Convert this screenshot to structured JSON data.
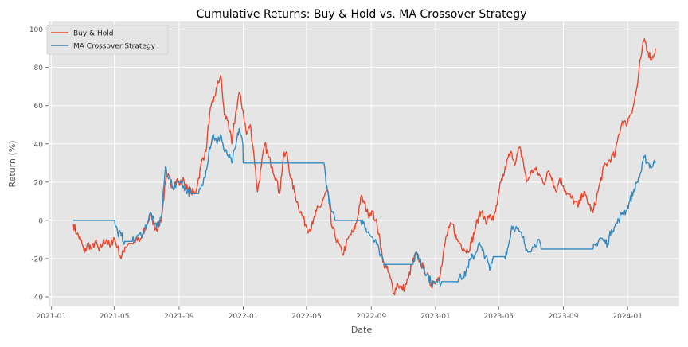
{
  "chart_data": {
    "type": "line",
    "title": "Cumulative Returns: Buy & Hold vs. MA Crossover Strategy",
    "xlabel": "Date",
    "ylabel": "Return (%)",
    "xlim": [
      "2020-12-27",
      "2024-04-08"
    ],
    "ylim": [
      -45,
      104
    ],
    "grid": true,
    "legend_position": "top-left",
    "x_ticks": [
      "2021-01",
      "2021-05",
      "2021-09",
      "2022-01",
      "2022-05",
      "2022-09",
      "2023-01",
      "2023-05",
      "2023-09",
      "2024-01"
    ],
    "y_ticks": [
      -40,
      -20,
      0,
      20,
      40,
      60,
      80,
      100
    ],
    "series": [
      {
        "name": "Buy & Hold",
        "color": "#E24A33",
        "points": [
          [
            "2021-02-12",
            -2
          ],
          [
            "2021-02-19",
            -7
          ],
          [
            "2021-02-26",
            -10
          ],
          [
            "2021-03-05",
            -17
          ],
          [
            "2021-03-12",
            -12
          ],
          [
            "2021-03-19",
            -15
          ],
          [
            "2021-03-26",
            -11
          ],
          [
            "2021-04-02",
            -16
          ],
          [
            "2021-04-09",
            -12
          ],
          [
            "2021-04-16",
            -10
          ],
          [
            "2021-04-23",
            -14
          ],
          [
            "2021-04-30",
            -9
          ],
          [
            "2021-05-07",
            -14
          ],
          [
            "2021-05-14",
            -20
          ],
          [
            "2021-05-21",
            -14
          ],
          [
            "2021-05-28",
            -12
          ],
          [
            "2021-06-04",
            -12
          ],
          [
            "2021-06-11",
            -10
          ],
          [
            "2021-06-18",
            -11
          ],
          [
            "2021-06-25",
            -7
          ],
          [
            "2021-07-02",
            -2
          ],
          [
            "2021-07-09",
            3
          ],
          [
            "2021-07-16",
            -3
          ],
          [
            "2021-07-23",
            -4
          ],
          [
            "2021-07-30",
            2
          ],
          [
            "2021-08-06",
            20
          ],
          [
            "2021-08-13",
            23
          ],
          [
            "2021-08-20",
            17
          ],
          [
            "2021-08-27",
            21
          ],
          [
            "2021-09-03",
            19
          ],
          [
            "2021-09-10",
            21
          ],
          [
            "2021-09-17",
            16
          ],
          [
            "2021-09-24",
            15
          ],
          [
            "2021-10-01",
            14
          ],
          [
            "2021-10-08",
            22
          ],
          [
            "2021-10-15",
            32
          ],
          [
            "2021-10-22",
            36
          ],
          [
            "2021-10-29",
            56
          ],
          [
            "2021-11-05",
            62
          ],
          [
            "2021-11-12",
            70
          ],
          [
            "2021-11-19",
            76
          ],
          [
            "2021-11-26",
            55
          ],
          [
            "2021-12-03",
            52
          ],
          [
            "2021-12-10",
            40
          ],
          [
            "2021-12-17",
            55
          ],
          [
            "2021-12-24",
            67
          ],
          [
            "2021-12-31",
            58
          ],
          [
            "2022-01-07",
            45
          ],
          [
            "2022-01-14",
            50
          ],
          [
            "2022-01-21",
            35
          ],
          [
            "2022-01-28",
            15
          ],
          [
            "2022-02-04",
            28
          ],
          [
            "2022-02-11",
            40
          ],
          [
            "2022-02-18",
            33
          ],
          [
            "2022-02-25",
            28
          ],
          [
            "2022-03-04",
            22
          ],
          [
            "2022-03-11",
            14
          ],
          [
            "2022-03-18",
            33
          ],
          [
            "2022-03-25",
            35
          ],
          [
            "2022-04-01",
            22
          ],
          [
            "2022-04-08",
            15
          ],
          [
            "2022-04-15",
            8
          ],
          [
            "2022-04-22",
            3
          ],
          [
            "2022-04-29",
            -2
          ],
          [
            "2022-05-06",
            -5
          ],
          [
            "2022-05-13",
            -2
          ],
          [
            "2022-05-20",
            5
          ],
          [
            "2022-05-27",
            7
          ],
          [
            "2022-06-03",
            12
          ],
          [
            "2022-06-10",
            16
          ],
          [
            "2022-06-17",
            -2
          ],
          [
            "2022-06-24",
            -8
          ],
          [
            "2022-07-01",
            -12
          ],
          [
            "2022-07-08",
            -18
          ],
          [
            "2022-07-15",
            -13
          ],
          [
            "2022-07-22",
            -8
          ],
          [
            "2022-07-29",
            -6
          ],
          [
            "2022-08-05",
            0
          ],
          [
            "2022-08-12",
            12
          ],
          [
            "2022-08-19",
            9
          ],
          [
            "2022-08-26",
            3
          ],
          [
            "2022-09-02",
            5
          ],
          [
            "2022-09-09",
            0
          ],
          [
            "2022-09-16",
            -7
          ],
          [
            "2022-09-23",
            -22
          ],
          [
            "2022-09-30",
            -25
          ],
          [
            "2022-10-07",
            -30
          ],
          [
            "2022-10-14",
            -38
          ],
          [
            "2022-10-21",
            -33
          ],
          [
            "2022-10-28",
            -36
          ],
          [
            "2022-11-04",
            -35
          ],
          [
            "2022-11-11",
            -30
          ],
          [
            "2022-11-18",
            -22
          ],
          [
            "2022-11-25",
            -18
          ],
          [
            "2022-12-02",
            -21
          ],
          [
            "2022-12-09",
            -25
          ],
          [
            "2022-12-16",
            -28
          ],
          [
            "2022-12-23",
            -34
          ],
          [
            "2022-12-30",
            -32
          ],
          [
            "2023-01-06",
            -30
          ],
          [
            "2023-01-13",
            -24
          ],
          [
            "2023-01-20",
            -10
          ],
          [
            "2023-01-27",
            -4
          ],
          [
            "2023-02-03",
            -2
          ],
          [
            "2023-02-10",
            -10
          ],
          [
            "2023-02-17",
            -12
          ],
          [
            "2023-02-24",
            -15
          ],
          [
            "2023-03-03",
            -16
          ],
          [
            "2023-03-10",
            -12
          ],
          [
            "2023-03-17",
            -5
          ],
          [
            "2023-03-24",
            2
          ],
          [
            "2023-03-31",
            5
          ],
          [
            "2023-04-07",
            -2
          ],
          [
            "2023-04-14",
            3
          ],
          [
            "2023-04-21",
            0
          ],
          [
            "2023-04-28",
            8
          ],
          [
            "2023-05-05",
            20
          ],
          [
            "2023-05-12",
            25
          ],
          [
            "2023-05-19",
            33
          ],
          [
            "2023-05-26",
            35
          ],
          [
            "2023-06-02",
            30
          ],
          [
            "2023-06-09",
            38
          ],
          [
            "2023-06-16",
            32
          ],
          [
            "2023-06-23",
            20
          ],
          [
            "2023-06-30",
            24
          ],
          [
            "2023-07-07",
            27
          ],
          [
            "2023-07-14",
            25
          ],
          [
            "2023-07-21",
            22
          ],
          [
            "2023-07-28",
            20
          ],
          [
            "2023-08-04",
            26
          ],
          [
            "2023-08-11",
            22
          ],
          [
            "2023-08-18",
            15
          ],
          [
            "2023-08-25",
            22
          ],
          [
            "2023-09-01",
            18
          ],
          [
            "2023-09-08",
            14
          ],
          [
            "2023-09-15",
            12
          ],
          [
            "2023-09-22",
            10
          ],
          [
            "2023-09-29",
            7
          ],
          [
            "2023-10-06",
            14
          ],
          [
            "2023-10-13",
            13
          ],
          [
            "2023-10-20",
            8
          ],
          [
            "2023-10-27",
            4
          ],
          [
            "2023-11-03",
            12
          ],
          [
            "2023-11-10",
            20
          ],
          [
            "2023-11-17",
            28
          ],
          [
            "2023-11-24",
            30
          ],
          [
            "2023-12-01",
            33
          ],
          [
            "2023-12-08",
            34
          ],
          [
            "2023-12-15",
            45
          ],
          [
            "2023-12-22",
            52
          ],
          [
            "2023-12-29",
            50
          ],
          [
            "2024-01-05",
            55
          ],
          [
            "2024-01-12",
            60
          ],
          [
            "2024-01-19",
            70
          ],
          [
            "2024-01-26",
            85
          ],
          [
            "2024-02-02",
            95
          ],
          [
            "2024-02-09",
            88
          ],
          [
            "2024-02-16",
            84
          ],
          [
            "2024-02-23",
            90
          ]
        ]
      },
      {
        "name": "MA Crossover Strategy",
        "color": "#348ABD",
        "points": [
          [
            "2021-02-12",
            0
          ],
          [
            "2021-04-30",
            0
          ],
          [
            "2021-05-07",
            -6
          ],
          [
            "2021-05-14",
            -8
          ],
          [
            "2021-05-21",
            -11
          ],
          [
            "2021-06-04",
            -11
          ],
          [
            "2021-06-11",
            -10
          ],
          [
            "2021-06-25",
            -6
          ],
          [
            "2021-07-02",
            -2
          ],
          [
            "2021-07-09",
            4
          ],
          [
            "2021-07-16",
            -2
          ],
          [
            "2021-07-23",
            -3
          ],
          [
            "2021-07-30",
            3
          ],
          [
            "2021-08-06",
            28
          ],
          [
            "2021-08-13",
            22
          ],
          [
            "2021-08-20",
            17
          ],
          [
            "2021-08-27",
            20
          ],
          [
            "2021-09-03",
            20
          ],
          [
            "2021-09-10",
            18
          ],
          [
            "2021-09-17",
            15
          ],
          [
            "2021-09-24",
            14
          ],
          [
            "2021-10-08",
            14
          ],
          [
            "2021-10-15",
            18
          ],
          [
            "2021-10-22",
            26
          ],
          [
            "2021-10-29",
            38
          ],
          [
            "2021-11-05",
            45
          ],
          [
            "2021-11-12",
            40
          ],
          [
            "2021-11-19",
            45
          ],
          [
            "2021-11-26",
            36
          ],
          [
            "2021-12-03",
            34
          ],
          [
            "2021-12-10",
            30
          ],
          [
            "2021-12-17",
            38
          ],
          [
            "2021-12-24",
            48
          ],
          [
            "2021-12-31",
            40
          ],
          [
            "2022-01-01",
            30
          ],
          [
            "2022-06-03",
            30
          ],
          [
            "2022-06-10",
            15
          ],
          [
            "2022-06-17",
            5
          ],
          [
            "2022-06-24",
            0
          ],
          [
            "2022-08-12",
            0
          ],
          [
            "2022-08-19",
            -2
          ],
          [
            "2022-08-26",
            -6
          ],
          [
            "2022-09-09",
            -10
          ],
          [
            "2022-09-16",
            -16
          ],
          [
            "2022-09-23",
            -20
          ],
          [
            "2022-09-30",
            -23
          ],
          [
            "2022-11-18",
            -23
          ],
          [
            "2022-11-25",
            -18
          ],
          [
            "2022-12-02",
            -20
          ],
          [
            "2022-12-09",
            -25
          ],
          [
            "2022-12-16",
            -28
          ],
          [
            "2022-12-23",
            -32
          ],
          [
            "2022-12-30",
            -33
          ],
          [
            "2023-01-13",
            -32
          ],
          [
            "2023-02-10",
            -32
          ],
          [
            "2023-02-17",
            -28
          ],
          [
            "2023-02-24",
            -30
          ],
          [
            "2023-03-03",
            -24
          ],
          [
            "2023-03-10",
            -20
          ],
          [
            "2023-03-17",
            -18
          ],
          [
            "2023-03-24",
            -12
          ],
          [
            "2023-03-31",
            -16
          ],
          [
            "2023-04-07",
            -19
          ],
          [
            "2023-04-14",
            -26
          ],
          [
            "2023-04-21",
            -19
          ],
          [
            "2023-05-12",
            -19
          ],
          [
            "2023-05-19",
            -14
          ],
          [
            "2023-05-26",
            -3
          ],
          [
            "2023-06-02",
            -4
          ],
          [
            "2023-06-09",
            -6
          ],
          [
            "2023-06-16",
            -9
          ],
          [
            "2023-06-23",
            -15
          ],
          [
            "2023-07-07",
            -14
          ],
          [
            "2023-07-14",
            -10
          ],
          [
            "2023-07-21",
            -15
          ],
          [
            "2023-10-27",
            -15
          ],
          [
            "2023-11-03",
            -12
          ],
          [
            "2023-11-10",
            -9
          ],
          [
            "2023-11-17",
            -11
          ],
          [
            "2023-11-24",
            -12
          ],
          [
            "2023-12-01",
            -5
          ],
          [
            "2023-12-08",
            -3
          ],
          [
            "2023-12-15",
            0
          ],
          [
            "2023-12-22",
            4
          ],
          [
            "2023-12-29",
            5
          ],
          [
            "2024-01-05",
            10
          ],
          [
            "2024-01-12",
            15
          ],
          [
            "2024-01-19",
            20
          ],
          [
            "2024-01-26",
            25
          ],
          [
            "2024-02-02",
            33
          ],
          [
            "2024-02-09",
            30
          ],
          [
            "2024-02-16",
            28
          ],
          [
            "2024-02-23",
            31
          ]
        ]
      }
    ]
  }
}
